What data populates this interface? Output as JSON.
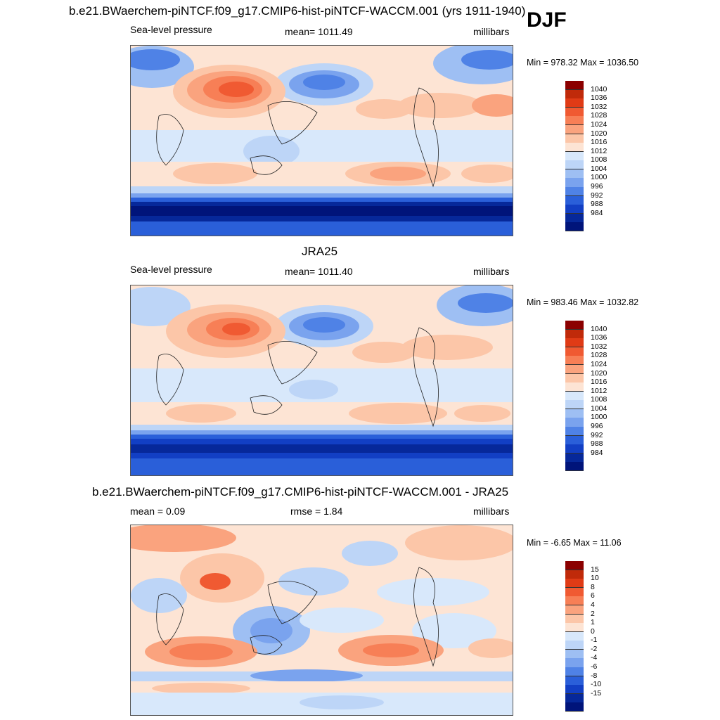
{
  "season": "DJF",
  "colors": {
    "warm": [
      "#fde4d4",
      "#fcc6a8",
      "#faa37e",
      "#f77f56",
      "#f05a32",
      "#e03b16",
      "#c02a0a",
      "#8b0000"
    ],
    "cool": [
      "#d8e8fb",
      "#bdd5f7",
      "#9ebff3",
      "#7aa3ee",
      "#4f82e6",
      "#2a5fd9",
      "#123fc4",
      "#06289a",
      "#00147a"
    ]
  },
  "panels": [
    {
      "title": "b.e21.BWaerchem-piNTCF.f09_g17.CMIP6-hist-piNTCF-WACCM.001 (yrs 1911-1940)",
      "left_label": "Sea-level pressure",
      "center_label": "mean= 1011.49",
      "right_label": "millibars",
      "minmax": "Min = 978.32 Max = 1036.50",
      "colorbar_labels": [
        "1040",
        "1036",
        "1032",
        "1028",
        "1024",
        "1020",
        "1016",
        "1012",
        "1008",
        "1004",
        "1000",
        "996",
        "992",
        "988",
        "984"
      ]
    },
    {
      "title": "JRA25",
      "left_label": "Sea-level pressure",
      "center_label": "mean= 1011.40",
      "right_label": "millibars",
      "minmax": "Min = 983.46 Max = 1032.82",
      "colorbar_labels": [
        "1040",
        "1036",
        "1032",
        "1028",
        "1024",
        "1020",
        "1016",
        "1012",
        "1008",
        "1004",
        "1000",
        "996",
        "992",
        "988",
        "984"
      ]
    },
    {
      "title": "b.e21.BWaerchem-piNTCF.f09_g17.CMIP6-hist-piNTCF-WACCM.001 - JRA25",
      "left_label": "mean =   0.09",
      "center_label": "rmse =   1.84",
      "right_label": "millibars",
      "minmax": "Min =  -6.65 Max =  11.06",
      "colorbar_labels": [
        "15",
        "10",
        "8",
        "6",
        "4",
        "2",
        "1",
        "0",
        "-1",
        "-2",
        "-4",
        "-6",
        "-8",
        "-10",
        "-15"
      ]
    }
  ],
  "chart_data": {
    "type": "heatmap",
    "variable": "Sea-level pressure",
    "units": "millibars",
    "season": "DJF",
    "maps": [
      {
        "name": "model",
        "mean": 1011.49,
        "min": 978.32,
        "max": 1036.5,
        "levels": [
          984,
          988,
          992,
          996,
          1000,
          1004,
          1008,
          1012,
          1016,
          1020,
          1024,
          1028,
          1032,
          1036,
          1040
        ]
      },
      {
        "name": "JRA25",
        "mean": 1011.4,
        "min": 983.46,
        "max": 1032.82,
        "levels": [
          984,
          988,
          992,
          996,
          1000,
          1004,
          1008,
          1012,
          1016,
          1020,
          1024,
          1028,
          1032,
          1036,
          1040
        ]
      },
      {
        "name": "difference",
        "mean": 0.09,
        "rmse": 1.84,
        "min": -6.65,
        "max": 11.06,
        "levels": [
          -15,
          -10,
          -8,
          -6,
          -4,
          -2,
          -1,
          0,
          1,
          2,
          4,
          6,
          8,
          10,
          15
        ]
      }
    ]
  }
}
